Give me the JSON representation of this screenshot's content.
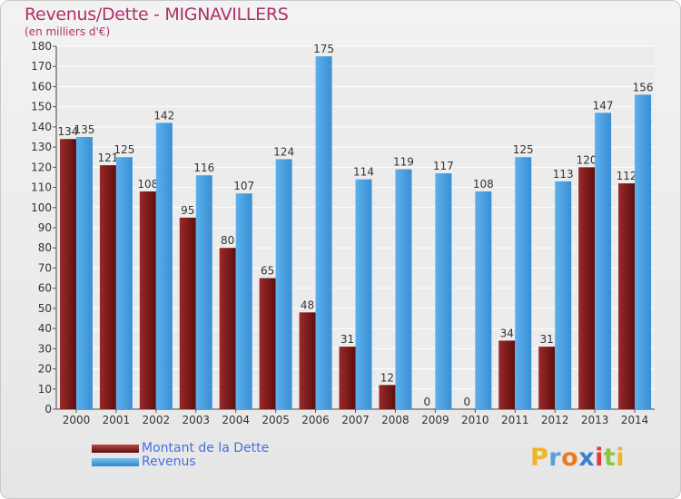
{
  "header": {
    "title": "Revenus/Dette - MIGNAVILLERS",
    "subtitle": "(en milliers d'€)"
  },
  "chart_data": {
    "type": "bar",
    "title": "Revenus/Dette - MIGNAVILLERS",
    "subtitle": "(en milliers d'€)",
    "categories": [
      "2000",
      "2001",
      "2002",
      "2003",
      "2004",
      "2005",
      "2006",
      "2007",
      "2008",
      "2009",
      "2010",
      "2011",
      "2012",
      "2013",
      "2014"
    ],
    "series": [
      {
        "name": "Montant de la Dette",
        "color": "#7a1a1a",
        "values": [
          134,
          121,
          108,
          95,
          80,
          65,
          48,
          31,
          12,
          0,
          0,
          34,
          31,
          120,
          112
        ]
      },
      {
        "name": "Revenus",
        "color": "#4da3e4",
        "values": [
          135,
          125,
          142,
          116,
          107,
          124,
          175,
          114,
          119,
          117,
          108,
          125,
          113,
          147,
          156
        ]
      }
    ],
    "ylim": [
      0,
      180
    ],
    "ytick_step": 10,
    "grid": true,
    "legend_position": "bottom-left"
  },
  "legend": {
    "items": [
      {
        "label": "Montant de la Dette",
        "color": "#7a1a1a"
      },
      {
        "label": "Revenus",
        "color": "#4da3e4"
      }
    ]
  },
  "logo": {
    "letters": [
      "P",
      "r",
      "o",
      "x",
      "i",
      "t",
      "i"
    ],
    "colors": [
      "#f0b42a",
      "#5aa0d8",
      "#f07820",
      "#3a7fd0",
      "#e03b3b",
      "#8cc63f",
      "#f0b42a"
    ]
  }
}
